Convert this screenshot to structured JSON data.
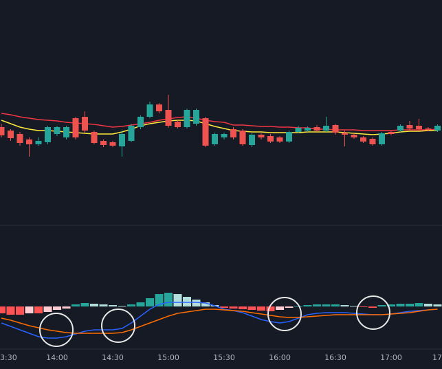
{
  "chart_data": [
    {
      "type": "candlestick",
      "open": [
        135,
        130,
        125,
        117,
        110,
        113,
        125,
        120,
        148,
        150,
        128,
        115,
        113,
        107,
        115,
        135,
        150,
        168,
        160,
        143,
        135,
        140,
        148,
        110,
        120,
        132,
        130,
        109,
        124,
        122,
        120,
        114,
        128,
        130,
        135,
        130,
        138,
        127,
        124,
        120,
        118,
        110,
        128,
        130,
        138,
        137,
        133,
        130
      ],
      "high": [
        140,
        132,
        128,
        120,
        120,
        137,
        137,
        137,
        150,
        158,
        130,
        117,
        115,
        130,
        140,
        152,
        172,
        170,
        182,
        145,
        162,
        162,
        150,
        127,
        127,
        135,
        132,
        126,
        126,
        125,
        122,
        130,
        137,
        136,
        138,
        150,
        140,
        130,
        126,
        122,
        120,
        128,
        130,
        139,
        144,
        147,
        135,
        139
      ],
      "low": [
        120,
        115,
        108,
        92,
        108,
        110,
        122,
        117,
        117,
        127,
        110,
        106,
        106,
        92,
        113,
        132,
        148,
        155,
        134,
        133,
        133,
        137,
        106,
        108,
        117,
        117,
        108,
        106,
        117,
        112,
        112,
        112,
        126,
        128,
        128,
        128,
        124,
        107,
        118,
        112,
        108,
        108,
        123,
        128,
        131,
        130,
        129,
        128
      ],
      "close": [
        123,
        119,
        112,
        110,
        115,
        135,
        135,
        135,
        120,
        130,
        112,
        109,
        108,
        125,
        137,
        150,
        168,
        158,
        137,
        135,
        160,
        160,
        108,
        125,
        125,
        120,
        110,
        124,
        120,
        114,
        114,
        128,
        134,
        134,
        130,
        137,
        127,
        124,
        120,
        114,
        110,
        126,
        125,
        137,
        133,
        132,
        131,
        137
      ],
      "up_color": "#26a69a",
      "down_color": "#ef5350",
      "series": [
        {
          "color": "#f23645",
          "values": [
            155,
            153,
            150,
            148,
            146,
            145,
            144,
            142,
            141,
            140,
            139,
            137,
            135,
            136,
            138,
            140,
            142,
            145,
            147,
            149,
            150,
            148,
            145,
            143,
            142,
            138,
            138,
            137,
            136,
            136,
            135,
            135,
            134,
            134,
            132,
            132,
            131,
            131,
            131,
            130,
            130,
            130,
            130,
            131,
            131,
            131,
            131,
            132
          ]
        },
        {
          "color": "#ffeb3b",
          "values": [
            145,
            140,
            135,
            132,
            130,
            130,
            129,
            128,
            127,
            126,
            125,
            125,
            125,
            128,
            132,
            137,
            140,
            142,
            144,
            145,
            145,
            144,
            140,
            136,
            133,
            130,
            129,
            128,
            128,
            127,
            127,
            127,
            127,
            128,
            128,
            128,
            128,
            127,
            126,
            125,
            124,
            125,
            126,
            128,
            129,
            129,
            130,
            130
          ]
        }
      ],
      "ylim": [
        0,
        320
      ],
      "xtick_labels": [
        "3:30",
        "14:00",
        "14:30",
        "15:00",
        "15:30",
        "16:00",
        "16:30",
        "17:00",
        "17"
      ]
    },
    {
      "type": "macd",
      "histogram": [
        -10,
        -12,
        -12,
        -10,
        -10,
        -8,
        -5,
        -3,
        3,
        5,
        4,
        3,
        2,
        1,
        3,
        6,
        12,
        18,
        20,
        18,
        14,
        10,
        6,
        2,
        -2,
        -3,
        -4,
        -5,
        -6,
        -7,
        -5,
        -2,
        1,
        2,
        3,
        3,
        3,
        2,
        1,
        -1,
        -2,
        2,
        3,
        4,
        4,
        5,
        4,
        3
      ],
      "histogram_colors": [
        "#26a69a",
        "#b2dfdb",
        "#ffcdd2",
        "#ff5252"
      ],
      "series": [
        {
          "color": "#2962ff",
          "values": [
            -24,
            -29,
            -34,
            -39,
            -44,
            -46,
            -46,
            -44,
            -40,
            -36,
            -34,
            -34,
            -34,
            -32,
            -24,
            -14,
            -4,
            3,
            6,
            6,
            6,
            6,
            5,
            1,
            -4,
            -6,
            -9,
            -14,
            -19,
            -22,
            -24,
            -22,
            -17,
            -12,
            -10,
            -9,
            -9,
            -9,
            -10,
            -11,
            -12,
            -12,
            -11,
            -9,
            -7,
            -6,
            -5,
            -4
          ]
        },
        {
          "color": "#ff6d00",
          "values": [
            -17,
            -20,
            -24,
            -28,
            -31,
            -34,
            -36,
            -38,
            -39,
            -39,
            -39,
            -39,
            -39,
            -38,
            -34,
            -29,
            -24,
            -19,
            -14,
            -10,
            -8,
            -6,
            -4,
            -4,
            -5,
            -6,
            -7,
            -9,
            -11,
            -13,
            -15,
            -16,
            -16,
            -15,
            -14,
            -13,
            -12,
            -12,
            -12,
            -12,
            -12,
            -12,
            -11,
            -10,
            -9,
            -7,
            -5,
            -4
          ]
        }
      ],
      "ylim": [
        -64,
        106
      ]
    }
  ]
}
